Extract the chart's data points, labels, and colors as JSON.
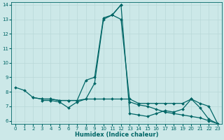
{
  "xlabel": "Humidex (Indice chaleur)",
  "bg_color": "#cce8e8",
  "line_color": "#006666",
  "grid_color": "#b8d8d8",
  "xlim": [
    -0.5,
    23.5
  ],
  "ylim": [
    5.8,
    14.2
  ],
  "yticks": [
    6,
    7,
    8,
    9,
    10,
    11,
    12,
    13,
    14
  ],
  "xticks": [
    0,
    1,
    2,
    3,
    4,
    5,
    6,
    7,
    8,
    9,
    10,
    11,
    12,
    13,
    14,
    15,
    16,
    17,
    18,
    19,
    20,
    21,
    22,
    23
  ],
  "series": [
    {
      "x": [
        2,
        3,
        4,
        5,
        6,
        7,
        8,
        9,
        10,
        11,
        12
      ],
      "y": [
        7.6,
        7.5,
        7.5,
        7.4,
        7.4,
        7.4,
        8.8,
        9.0,
        13.1,
        13.3,
        14.0
      ]
    },
    {
      "x": [
        11,
        12,
        13,
        14,
        15,
        16,
        17,
        18,
        19,
        20,
        21,
        22,
        23
      ],
      "y": [
        13.3,
        14.0,
        6.5,
        6.4,
        6.3,
        6.5,
        6.7,
        6.6,
        6.8,
        7.5,
        6.9,
        6.1,
        5.8
      ]
    },
    {
      "x": [
        0,
        1,
        2,
        3,
        4,
        5,
        6,
        7,
        8,
        9,
        10,
        11,
        12,
        13,
        14,
        15,
        16,
        17,
        18,
        19,
        20,
        21,
        22,
        23
      ],
      "y": [
        8.3,
        8.1,
        7.6,
        7.5,
        7.5,
        7.4,
        7.4,
        7.4,
        7.5,
        7.5,
        7.5,
        7.5,
        7.5,
        7.5,
        7.2,
        7.2,
        7.2,
        7.2,
        7.2,
        7.2,
        7.5,
        7.2,
        7.0,
        5.8
      ]
    },
    {
      "x": [
        3,
        4,
        5,
        6,
        7,
        8,
        9,
        10,
        11,
        12,
        13,
        14,
        15,
        16,
        17,
        18,
        19,
        20,
        21,
        22,
        23
      ],
      "y": [
        7.4,
        7.4,
        7.3,
        6.9,
        7.3,
        7.5,
        8.6,
        13.0,
        13.3,
        13.0,
        7.3,
        7.1,
        7.0,
        6.8,
        6.6,
        6.5,
        6.4,
        6.3,
        6.2,
        6.0,
        5.8
      ]
    }
  ]
}
